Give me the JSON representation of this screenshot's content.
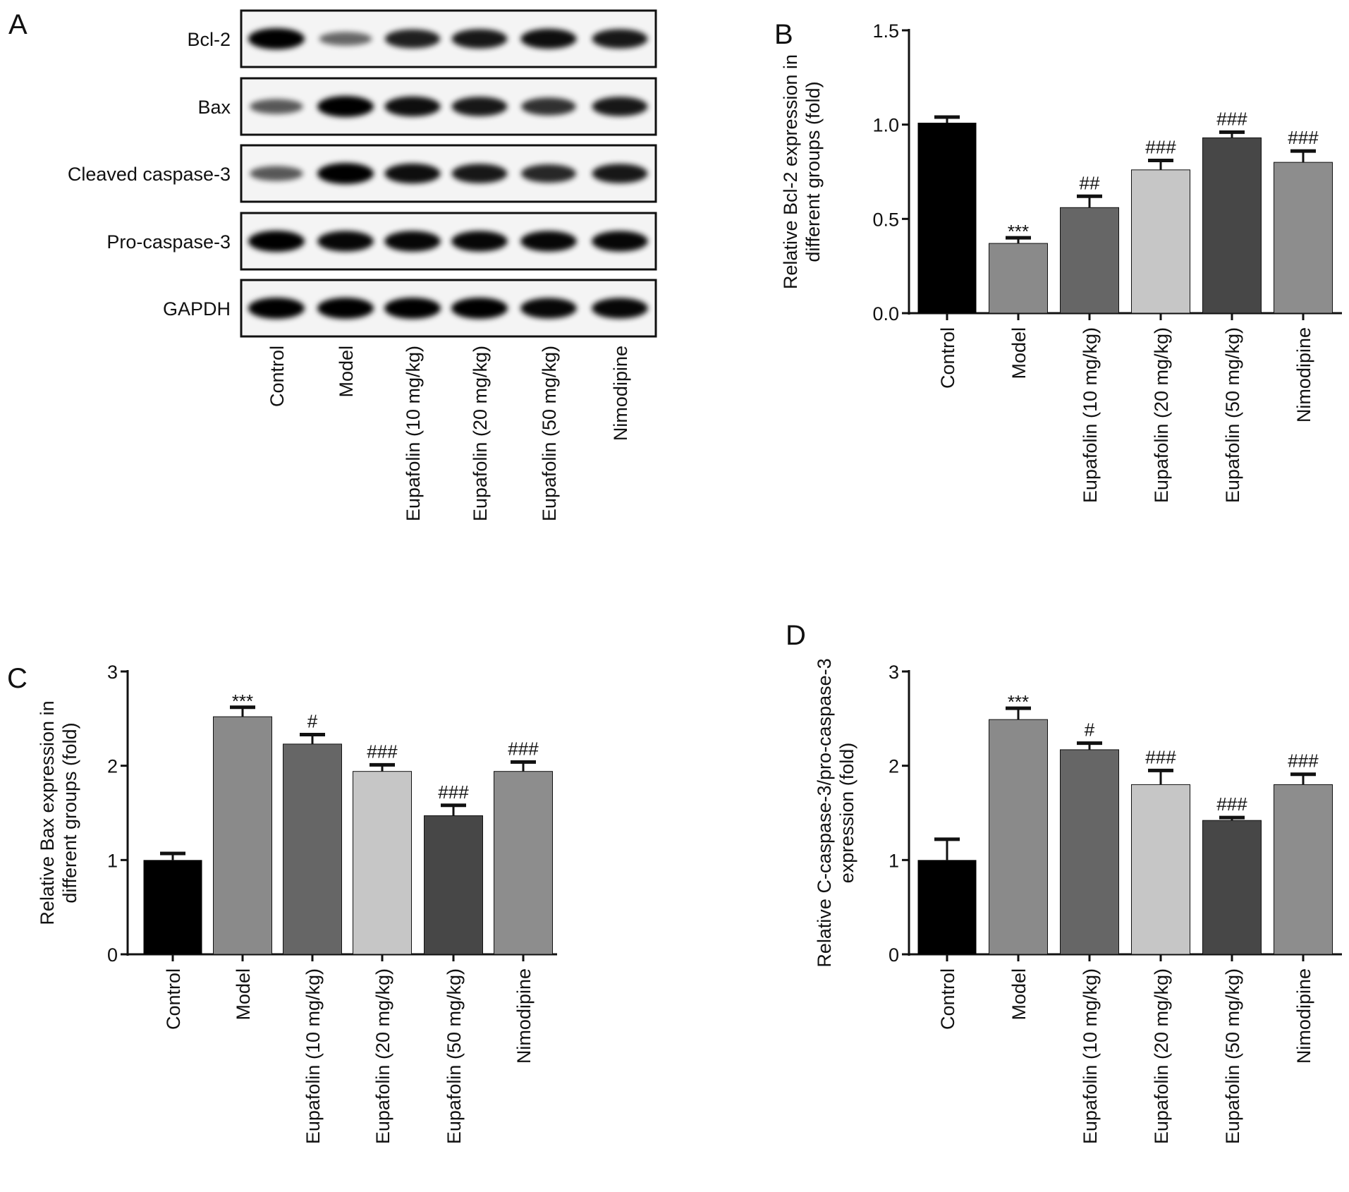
{
  "groups": [
    "Control",
    "Model",
    "Eupafolin (10 mg/kg)",
    "Eupafolin (20 mg/kg)",
    "Eupafolin (50 mg/kg)",
    "Nimodipine"
  ],
  "bar_colors": [
    "#000000",
    "#8a8a8a",
    "#666666",
    "#c6c6c6",
    "#474747",
    "#8d8d8d"
  ],
  "panel_a": {
    "letter": "A",
    "rows": [
      "Bcl-2",
      "Bax",
      "Cleaved caspase-3",
      "Pro-caspase-3",
      "GAPDH"
    ]
  },
  "chart_data": [
    {
      "panel": "B",
      "type": "bar",
      "categories": [
        "Control",
        "Model",
        "Eupafolin (10 mg/kg)",
        "Eupafolin (20 mg/kg)",
        "Eupafolin (50 mg/kg)",
        "Nimodipine"
      ],
      "values": [
        1.01,
        0.37,
        0.56,
        0.76,
        0.93,
        0.8
      ],
      "errors": [
        0.03,
        0.03,
        0.06,
        0.05,
        0.03,
        0.06
      ],
      "significance": [
        "",
        "***",
        "##",
        "###",
        "###",
        "###"
      ],
      "ylabel_lines": [
        "Relative Bcl-2 expression in",
        "different groups (fold)"
      ],
      "ylim": [
        0,
        1.5
      ],
      "yticks": [
        "0.0",
        "0.5",
        "1.0",
        "1.5"
      ],
      "ytick_values": [
        0,
        0.5,
        1.0,
        1.5
      ],
      "grid": false
    },
    {
      "panel": "C",
      "type": "bar",
      "categories": [
        "Control",
        "Model",
        "Eupafolin (10 mg/kg)",
        "Eupafolin (20 mg/kg)",
        "Eupafolin (50 mg/kg)",
        "Nimodipine"
      ],
      "values": [
        1.0,
        2.52,
        2.23,
        1.94,
        1.47,
        1.94
      ],
      "errors": [
        0.07,
        0.1,
        0.1,
        0.07,
        0.11,
        0.1
      ],
      "significance": [
        "",
        "***",
        "#",
        "###",
        "###",
        "###"
      ],
      "ylabel_lines": [
        "Relative Bax expression in",
        "different groups (fold)"
      ],
      "ylim": [
        0,
        3
      ],
      "yticks": [
        "0",
        "1",
        "2",
        "3"
      ],
      "ytick_values": [
        0,
        1,
        2,
        3
      ],
      "grid": false
    },
    {
      "panel": "D",
      "type": "bar",
      "categories": [
        "Control",
        "Model",
        "Eupafolin (10 mg/kg)",
        "Eupafolin (20 mg/kg)",
        "Eupafolin (50 mg/kg)",
        "Nimodipine"
      ],
      "values": [
        1.0,
        2.49,
        2.17,
        1.8,
        1.42,
        1.8
      ],
      "errors": [
        0.22,
        0.12,
        0.07,
        0.15,
        0.03,
        0.11
      ],
      "significance": [
        "",
        "***",
        "#",
        "###",
        "###",
        "###"
      ],
      "ylabel_lines": [
        "Relative C-caspase-3/pro-caspase-3",
        "expression (fold)"
      ],
      "ylim": [
        0,
        3
      ],
      "yticks": [
        "0",
        "1",
        "2",
        "3"
      ],
      "ytick_values": [
        0,
        1,
        2,
        3
      ],
      "grid": false
    }
  ]
}
